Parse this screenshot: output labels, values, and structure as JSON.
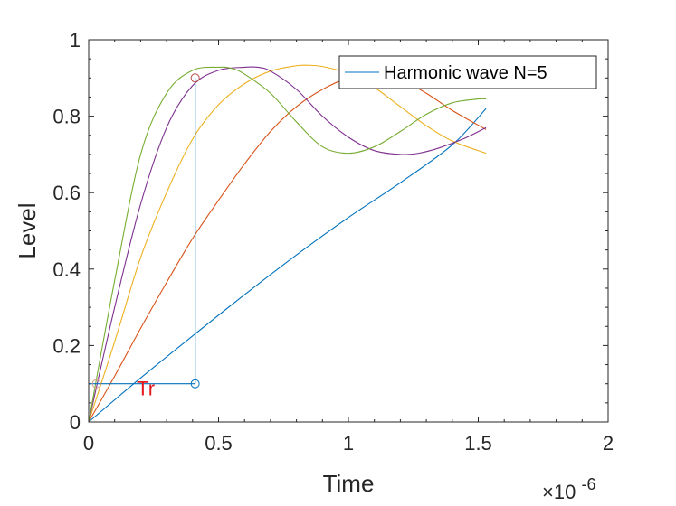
{
  "chart_data": {
    "type": "line",
    "xlabel": "Time",
    "ylabel": "Level",
    "x_exponent_label": "×10",
    "x_exponent_power": "-6",
    "xlim": [
      0,
      2
    ],
    "ylim": [
      0,
      1
    ],
    "x_ticks": [
      0,
      0.5,
      1,
      1.5,
      2
    ],
    "x_tick_labels": [
      "0",
      "0.5",
      "1",
      "1.5",
      "2"
    ],
    "y_ticks": [
      0,
      0.2,
      0.4,
      0.6,
      0.8,
      1
    ],
    "y_tick_labels": [
      "0",
      "0.2",
      "0.4",
      "0.6",
      "0.8",
      "1"
    ],
    "grid": false,
    "legend": {
      "entries": [
        "Harmonic wave N=5"
      ],
      "placement": "top-right"
    },
    "series": [
      {
        "color": "#0072BD",
        "x": [
          0,
          0.2,
          0.4,
          0.6,
          0.8,
          1.0,
          1.2,
          1.4,
          1.53
        ],
        "y": [
          0,
          0.115,
          0.225,
          0.333,
          0.437,
          0.535,
          0.626,
          0.725,
          0.82
        ]
      },
      {
        "color": "#D95319",
        "x": [
          0,
          0.1,
          0.2,
          0.3,
          0.4,
          0.5,
          0.6,
          0.7,
          0.8,
          0.9,
          1.0,
          1.1,
          1.2,
          1.3,
          1.4,
          1.53
        ],
        "y": [
          0,
          0.12,
          0.245,
          0.365,
          0.48,
          0.58,
          0.675,
          0.76,
          0.825,
          0.87,
          0.9,
          0.91,
          0.895,
          0.86,
          0.815,
          0.765
        ]
      },
      {
        "color": "#EDB120",
        "x": [
          0,
          0.1,
          0.2,
          0.3,
          0.4,
          0.5,
          0.6,
          0.7,
          0.8,
          0.85,
          0.9,
          1.0,
          1.1,
          1.2,
          1.3,
          1.4,
          1.53
        ],
        "y": [
          0,
          0.21,
          0.43,
          0.6,
          0.74,
          0.83,
          0.885,
          0.918,
          0.932,
          0.933,
          0.93,
          0.912,
          0.875,
          0.825,
          0.775,
          0.735,
          0.703
        ]
      },
      {
        "color": "#7E2F8E",
        "x": [
          0,
          0.1,
          0.2,
          0.3,
          0.4,
          0.5,
          0.6,
          0.65,
          0.7,
          0.8,
          0.9,
          1.0,
          1.1,
          1.2,
          1.27,
          1.35,
          1.45,
          1.53
        ],
        "y": [
          0,
          0.3,
          0.57,
          0.77,
          0.88,
          0.92,
          0.928,
          0.928,
          0.918,
          0.87,
          0.8,
          0.745,
          0.71,
          0.7,
          0.703,
          0.717,
          0.743,
          0.77
        ]
      },
      {
        "color": "#77AC30",
        "x": [
          0,
          0.1,
          0.2,
          0.3,
          0.4,
          0.5,
          0.55,
          0.6,
          0.7,
          0.8,
          0.9,
          1.0,
          1.1,
          1.2,
          1.3,
          1.4,
          1.5,
          1.53
        ],
        "y": [
          0,
          0.37,
          0.7,
          0.86,
          0.92,
          0.928,
          0.925,
          0.91,
          0.86,
          0.785,
          0.72,
          0.703,
          0.72,
          0.76,
          0.805,
          0.835,
          0.845,
          0.845
        ]
      }
    ],
    "annotation": {
      "label": "Tr",
      "color": "#0072BD",
      "label_color": "#e41a1c",
      "low_level": 0.1,
      "high_level": 0.9,
      "t_low": 0.03,
      "t_high": 0.41,
      "marker_colors": [
        "#d99f86",
        "#b84a48",
        "#0072BD"
      ]
    }
  }
}
